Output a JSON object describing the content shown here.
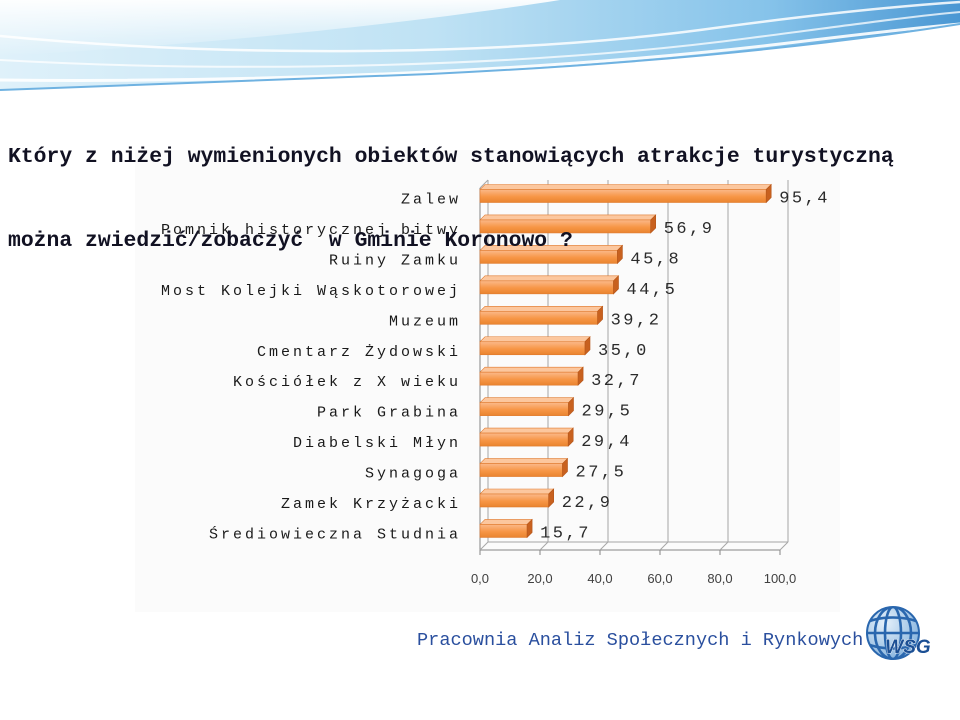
{
  "slide": {
    "title_lines": [
      "Który z niżej wymienionych obiektów stanowiących atrakcje turystyczną",
      "można zwiedzić/zobaczyć  w Gminie Koronowo ?"
    ],
    "footer": "Pracownia Analiz Społecznych i Rynkowych",
    "logo_text": "WSG",
    "logo_icon": "globe-icon",
    "colors": {
      "title": "#111122",
      "footer": "#2a4f9e",
      "header_wave": "#4a97d3",
      "logo": "#1b4f94"
    }
  },
  "chart_data": {
    "type": "bar",
    "orientation": "horizontal",
    "categories": [
      "Zalew",
      "Pomnik historycznej bitwy",
      "Ruiny Zamku",
      "Most Kolejki Wąskotorowej",
      "Muzeum",
      "Cmentarz Żydowski",
      "Kościółek z X wieku",
      "Park Grabina",
      "Diabelski Młyn",
      "Synagoga",
      "Zamek Krzyżacki",
      "Średiowieczna Studnia"
    ],
    "values": [
      95.4,
      56.9,
      45.8,
      44.5,
      39.2,
      35.0,
      32.7,
      29.5,
      29.4,
      27.5,
      22.9,
      15.7
    ],
    "data_labels": [
      "95,4",
      "56,9",
      "45,8",
      "44,5",
      "39,2",
      "35,0",
      "32,7",
      "29,5",
      "29,4",
      "27,5",
      "22,9",
      "15,7"
    ],
    "x_tick_labels": [
      "0,0",
      "20,0",
      "40,0",
      "60,0",
      "80,0",
      "100,0"
    ],
    "xlim": [
      0,
      100
    ],
    "grid": true,
    "bar_color": "#f79646"
  }
}
